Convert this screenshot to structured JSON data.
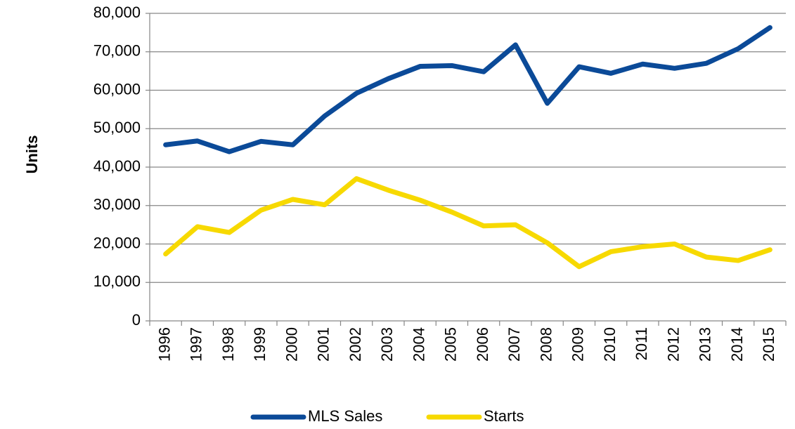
{
  "chart_data": {
    "type": "line",
    "y_label": "Units",
    "categories": [
      "1996",
      "1997",
      "1998",
      "1999",
      "2000",
      "2001",
      "2002",
      "2003",
      "2004",
      "2005",
      "2006",
      "2007",
      "2008",
      "2009",
      "2010",
      "2011",
      "2012",
      "2013",
      "2014",
      "2015"
    ],
    "series": [
      {
        "name": "MLS Sales",
        "color": "#0b4a98",
        "values": [
          45800,
          46800,
          44000,
          46700,
          45800,
          53300,
          59200,
          63000,
          66200,
          66400,
          64800,
          71800,
          56600,
          66100,
          64400,
          66800,
          65700,
          67000,
          70800,
          76300
        ]
      },
      {
        "name": "Starts",
        "color": "#f7d900",
        "values": [
          17400,
          24500,
          23000,
          28800,
          31600,
          30200,
          37000,
          34000,
          31400,
          28300,
          24700,
          25000,
          20300,
          14100,
          18000,
          19300,
          20000,
          16600,
          15700,
          18500
        ]
      }
    ],
    "ylim": [
      0,
      80000
    ],
    "yticks": [
      0,
      {
        "value": 10000,
        "label": "10,000"
      },
      {
        "value": 20000,
        "label": "20,000"
      },
      {
        "value": 30000,
        "label": "30,000"
      },
      {
        "value": 40000,
        "label": "40,000"
      },
      {
        "value": 50000,
        "label": "50,000"
      },
      {
        "value": 60000,
        "label": "60,000"
      },
      {
        "value": 70000,
        "label": "70,000"
      },
      {
        "value": 80000,
        "label": "80,000"
      }
    ],
    "grid": true,
    "legend": "bottom"
  }
}
